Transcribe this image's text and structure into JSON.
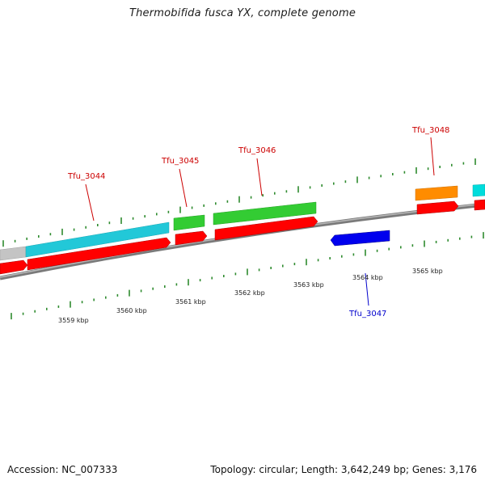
{
  "title": "Thermobifida fusca YX, complete genome",
  "accession": "Accession: NC_007333",
  "topology": "Topology: circular; Length: 3,642,249 bp; Genes: 3,176",
  "colors": {
    "backbone": "#8a8a8a",
    "cds": "#ff0000",
    "tick": "#2e8b2e",
    "forward_label": "#cc0000",
    "reverse_label": "#0000cc"
  },
  "kbp_labels": [
    "3559 kbp",
    "3560 kbp",
    "3561 kbp",
    "3562 kbp",
    "3563 kbp",
    "3564 kbp",
    "3565 kbp"
  ],
  "genes": [
    {
      "name": "Tfu_3044",
      "strand": "forward",
      "color": "#cc0000"
    },
    {
      "name": "Tfu_3045",
      "strand": "forward",
      "color": "#cc0000"
    },
    {
      "name": "Tfu_3046",
      "strand": "forward",
      "color": "#cc0000"
    },
    {
      "name": "Tfu_3047",
      "strand": "reverse",
      "color": "#0000cc"
    },
    {
      "name": "Tfu_3048",
      "strand": "forward",
      "color": "#cc0000"
    }
  ],
  "features": [
    {
      "kind": "cog",
      "color": "#c8c8c8"
    },
    {
      "kind": "cog",
      "color": "#22ccdd"
    },
    {
      "kind": "cog",
      "color": "#33cc33"
    },
    {
      "kind": "cog",
      "color": "#33cc33"
    },
    {
      "kind": "cog",
      "color": "#ff8800"
    },
    {
      "kind": "cog",
      "color": "#00dddd"
    },
    {
      "kind": "cog",
      "color": "#0000ee"
    }
  ]
}
